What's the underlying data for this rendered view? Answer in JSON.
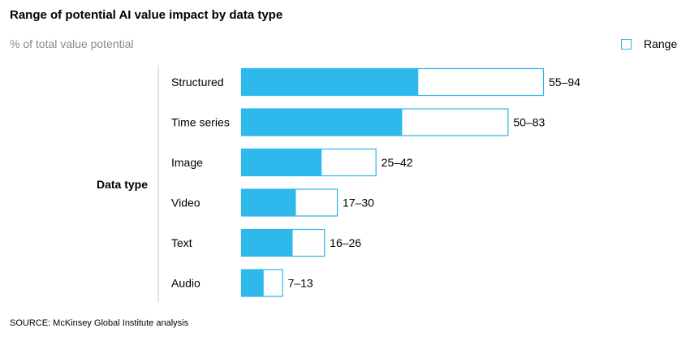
{
  "chart_data": {
    "type": "bar",
    "title": "Range of potential AI value impact by data type",
    "subtitle": "% of total value potential",
    "ylabel": "Data type",
    "legend": [
      {
        "name": "Range",
        "position": "top-right"
      }
    ],
    "categories": [
      "Structured",
      "Time series",
      "Image",
      "Video",
      "Text",
      "Audio"
    ],
    "series": [
      {
        "name": "Range",
        "low": [
          55,
          50,
          25,
          17,
          16,
          7
        ],
        "high": [
          94,
          83,
          42,
          30,
          26,
          13
        ]
      }
    ],
    "labels": [
      "55–94",
      "50–83",
      "25–42",
      "17–30",
      "16–26",
      "7–13"
    ],
    "xlim": [
      0,
      94
    ],
    "grid": false
  },
  "source": "SOURCE:  McKinsey Global Institute analysis",
  "colors": {
    "fill": "#2fb8ec",
    "stroke": "#2fb3e8",
    "axis_line": "#c8c8c8",
    "subtitle": "#8a8a8a"
  }
}
